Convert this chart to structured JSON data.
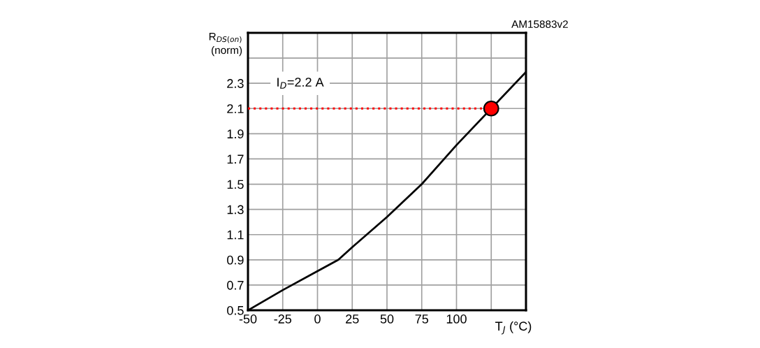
{
  "chart_data": {
    "type": "line",
    "xlabel": "T$_{J}$ (°C)",
    "ylabel": "R$_{DS(on)}$\n(norm)",
    "annotations": [
      "I$_{D}$=2.2 A",
      "AM15883v2"
    ],
    "xlim": [
      -50,
      150
    ],
    "xticks": [
      -50,
      -25,
      0,
      25,
      50,
      75,
      100,
      {
        "value": 125,
        "label": null
      }
    ],
    "ylim": [
      0.5,
      2.7
    ],
    "yticks": [
      0.5,
      0.7,
      0.9,
      1.1,
      1.3,
      1.5,
      1.7,
      1.9,
      2.1,
      2.3,
      {
        "value": 2.5,
        "label": null
      }
    ],
    "grid": true,
    "legend": false,
    "series": [
      {
        "color": "#000000",
        "x": [
          -50,
          -25,
          0,
          15,
          25,
          50,
          75,
          100,
          150
        ],
        "values": [
          0.5,
          0.66,
          0.81,
          0.9,
          1.0,
          1.24,
          1.5,
          1.81,
          2.39
        ],
        "line_style": "solid",
        "marker": "none"
      },
      {
        "color": "#ff0000",
        "x": [
          -50,
          125
        ],
        "values": [
          2.1,
          2.1
        ],
        "line_style": "dotted",
        "marker": "none"
      },
      {
        "type": "scatter",
        "color": "#ff0000",
        "x": [
          125
        ],
        "values": [
          2.1
        ],
        "marker": "circle"
      }
    ]
  }
}
